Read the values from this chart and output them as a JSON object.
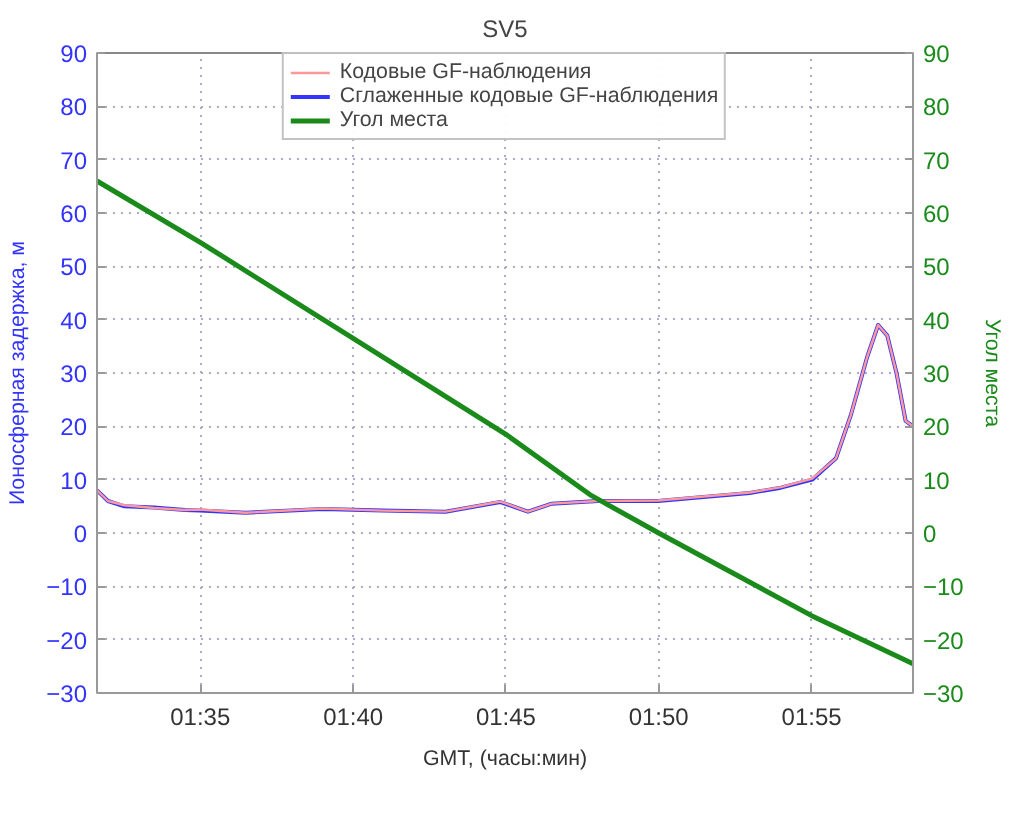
{
  "chart_data": {
    "type": "line",
    "title": "SV5",
    "xlabel": "GMT, (часы:мин)",
    "ylabel": "Ионосферная задержка, м",
    "y2label": "Угол места",
    "xlim": [
      1.527,
      1.972
    ],
    "ylim": [
      -30,
      90
    ],
    "y2lim": [
      -30,
      90
    ],
    "xticks": [
      {
        "value": 1.5833,
        "label": "01:35"
      },
      {
        "value": 1.6667,
        "label": "01:40"
      },
      {
        "value": 1.75,
        "label": "01:45"
      },
      {
        "value": 1.8333,
        "label": "01:50"
      },
      {
        "value": 1.9167,
        "label": "01:55"
      }
    ],
    "yticks": [
      -30,
      -20,
      -10,
      0,
      10,
      20,
      30,
      40,
      50,
      60,
      70,
      80,
      90
    ],
    "y2ticks": [
      -30,
      -20,
      -10,
      0,
      10,
      20,
      30,
      40,
      50,
      60,
      70,
      80,
      90
    ],
    "grid": true,
    "legend": "top",
    "marker": "none",
    "line_style": "solid",
    "series": [
      {
        "name": "Кодовые GF-наблюдения",
        "color": "#ff9999",
        "x": [
          1.527,
          1.533,
          1.542,
          1.558,
          1.575,
          1.583,
          1.608,
          1.65,
          1.683,
          1.717,
          1.747,
          1.762,
          1.775,
          1.8,
          1.833,
          1.85,
          1.883,
          1.9,
          1.917,
          1.93,
          1.938,
          1.947,
          1.953,
          1.958,
          1.963,
          1.968,
          1.972
        ],
        "values": [
          8,
          6,
          5.2,
          4.7,
          4.3,
          4.4,
          3.8,
          4.6,
          4.2,
          4.0,
          5.9,
          4.0,
          5.5,
          6.0,
          6.1,
          6.6,
          7.6,
          8.6,
          10.2,
          14,
          22,
          33,
          39,
          37,
          30,
          21,
          20
        ]
      },
      {
        "name": "Сглаженные кодовые GF-наблюдения",
        "color": "#3333ff",
        "x": [
          1.527,
          1.533,
          1.542,
          1.558,
          1.575,
          1.583,
          1.608,
          1.65,
          1.683,
          1.717,
          1.747,
          1.762,
          1.775,
          1.8,
          1.833,
          1.85,
          1.883,
          1.9,
          1.917,
          1.93,
          1.938,
          1.947,
          1.953,
          1.958,
          1.963,
          1.968,
          1.972
        ],
        "values": [
          8,
          6,
          5,
          4.8,
          4.3,
          4.2,
          3.8,
          4.5,
          4.2,
          4.0,
          5.8,
          4.0,
          5.5,
          6.0,
          6.0,
          6.5,
          7.5,
          8.5,
          10,
          14,
          22,
          33,
          39,
          37,
          30,
          21,
          20
        ]
      },
      {
        "name": "Угол места",
        "color": "#1a8a1a",
        "axis": "y2",
        "x": [
          1.527,
          1.5833,
          1.6667,
          1.75,
          1.7967,
          1.8333,
          1.9167,
          1.972
        ],
        "values": [
          66,
          54.5,
          36.5,
          18.5,
          7,
          0,
          -15.5,
          -24.5
        ]
      }
    ]
  }
}
